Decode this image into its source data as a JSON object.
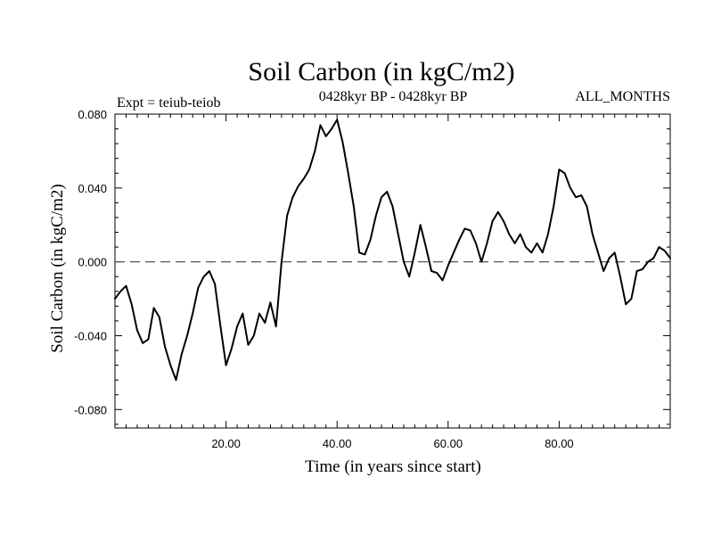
{
  "chart_data": {
    "type": "line",
    "title": "Soil Carbon (in kgC/m2)",
    "subtitle": "0428kyr BP - 0428kyr BP",
    "left_label": "Expt = teiub-teiob",
    "right_label": "ALL_MONTHS",
    "xlabel": "Time (in years since start)",
    "ylabel": "Soil Carbon (in kgC/m2)",
    "xlim": [
      0,
      100
    ],
    "ylim": [
      -0.09,
      0.08
    ],
    "x_ticks": [
      20,
      40,
      60,
      80
    ],
    "x_tick_labels": [
      "20.00",
      "40.00",
      "60.00",
      "80.00"
    ],
    "y_ticks": [
      0.08,
      0.04,
      0.0,
      -0.04,
      -0.08
    ],
    "y_tick_labels": [
      "0.080",
      "0.040",
      "0.000",
      "-0.040",
      "-0.080"
    ],
    "reference_line": 0.0,
    "series": [
      {
        "name": "Soil Carbon",
        "color": "#000000",
        "x": [
          0,
          1,
          2,
          3,
          4,
          5,
          6,
          7,
          8,
          9,
          10,
          11,
          12,
          13,
          14,
          15,
          16,
          17,
          18,
          19,
          20,
          21,
          22,
          23,
          24,
          25,
          26,
          27,
          28,
          29,
          30,
          31,
          32,
          33,
          34,
          35,
          36,
          37,
          38,
          39,
          40,
          41,
          42,
          43,
          44,
          45,
          46,
          47,
          48,
          49,
          50,
          51,
          52,
          53,
          54,
          55,
          56,
          57,
          58,
          59,
          60,
          61,
          62,
          63,
          64,
          65,
          66,
          67,
          68,
          69,
          70,
          71,
          72,
          73,
          74,
          75,
          76,
          77,
          78,
          79,
          80,
          81,
          82,
          83,
          84,
          85,
          86,
          87,
          88,
          89,
          90,
          91,
          92,
          93,
          94,
          95,
          96,
          97,
          98,
          99,
          100
        ],
        "values": [
          -0.02,
          -0.016,
          -0.013,
          -0.023,
          -0.037,
          -0.044,
          -0.042,
          -0.025,
          -0.03,
          -0.046,
          -0.056,
          -0.064,
          -0.05,
          -0.04,
          -0.028,
          -0.014,
          -0.008,
          -0.005,
          -0.012,
          -0.035,
          -0.056,
          -0.047,
          -0.035,
          -0.028,
          -0.045,
          -0.04,
          -0.028,
          -0.033,
          -0.022,
          -0.035,
          0.0,
          0.025,
          0.035,
          0.041,
          0.045,
          0.05,
          0.06,
          0.074,
          0.068,
          0.072,
          0.077,
          0.065,
          0.048,
          0.03,
          0.005,
          0.004,
          0.012,
          0.025,
          0.035,
          0.038,
          0.03,
          0.015,
          0.0,
          -0.008,
          0.005,
          0.02,
          0.008,
          -0.005,
          -0.006,
          -0.01,
          -0.002,
          0.005,
          0.012,
          0.018,
          0.017,
          0.01,
          0.0,
          0.01,
          0.022,
          0.027,
          0.022,
          0.015,
          0.01,
          0.015,
          0.008,
          0.005,
          0.01,
          0.005,
          0.015,
          0.03,
          0.05,
          0.048,
          0.04,
          0.035,
          0.036,
          0.03,
          0.015,
          0.005,
          -0.005,
          0.002,
          0.005,
          -0.008,
          -0.023,
          -0.02,
          -0.005,
          -0.004,
          0.0,
          0.002,
          0.008,
          0.006,
          0.002
        ]
      }
    ]
  }
}
